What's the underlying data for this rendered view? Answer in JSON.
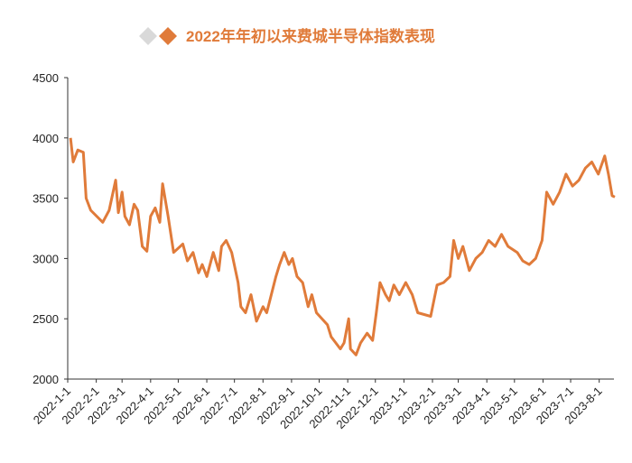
{
  "chart_data": {
    "type": "line",
    "title": "2022年年初以来费城半导体指数表现",
    "color": "#e07b3a",
    "x": [
      "2022-1-4",
      "2022-1-7",
      "2022-1-12",
      "2022-1-18",
      "2022-1-21",
      "2022-1-26",
      "2022-2-8",
      "2022-2-15",
      "2022-2-22",
      "2022-2-25",
      "2022-3-1",
      "2022-3-4",
      "2022-3-9",
      "2022-3-14",
      "2022-3-18",
      "2022-3-23",
      "2022-3-28",
      "2022-4-1",
      "2022-4-6",
      "2022-4-11",
      "2022-4-14",
      "2022-4-20",
      "2022-4-26",
      "2022-5-6",
      "2022-5-11",
      "2022-5-17",
      "2022-5-23",
      "2022-5-27",
      "2022-6-1",
      "2022-6-8",
      "2022-6-14",
      "2022-6-17",
      "2022-6-22",
      "2022-6-28",
      "2022-7-5",
      "2022-7-8",
      "2022-7-13",
      "2022-7-19",
      "2022-7-25",
      "2022-8-1",
      "2022-8-5",
      "2022-8-10",
      "2022-8-15",
      "2022-8-19",
      "2022-8-24",
      "2022-8-29",
      "2022-9-2",
      "2022-9-7",
      "2022-9-13",
      "2022-9-19",
      "2022-9-23",
      "2022-9-28",
      "2022-10-10",
      "2022-10-14",
      "2022-10-19",
      "2022-10-24",
      "2022-10-28",
      "2022-11-2",
      "2022-11-4",
      "2022-11-10",
      "2022-11-15",
      "2022-11-22",
      "2022-11-28",
      "2022-12-2",
      "2022-12-6",
      "2022-12-12",
      "2022-12-16",
      "2022-12-21",
      "2022-12-27",
      "2023-1-3",
      "2023-1-10",
      "2023-1-16",
      "2023-1-30",
      "2023-2-6",
      "2023-2-13",
      "2023-2-20",
      "2023-2-24",
      "2023-3-1",
      "2023-3-6",
      "2023-3-13",
      "2023-3-20",
      "2023-3-27",
      "2023-4-3",
      "2023-4-10",
      "2023-4-17",
      "2023-4-24",
      "2023-5-4",
      "2023-5-10",
      "2023-5-17",
      "2023-5-24",
      "2023-5-31",
      "2023-6-5",
      "2023-6-12",
      "2023-6-19",
      "2023-6-26",
      "2023-7-3",
      "2023-7-10",
      "2023-7-17",
      "2023-7-24",
      "2023-7-31",
      "2023-8-7",
      "2023-8-11",
      "2023-8-15",
      "2023-8-18"
    ],
    "values": [
      4000,
      3800,
      3900,
      3880,
      3500,
      3400,
      3300,
      3400,
      3650,
      3380,
      3550,
      3350,
      3280,
      3450,
      3400,
      3100,
      3060,
      3350,
      3420,
      3300,
      3620,
      3350,
      3050,
      3120,
      2980,
      3050,
      2880,
      2950,
      2850,
      3050,
      2900,
      3100,
      3150,
      3050,
      2800,
      2600,
      2550,
      2700,
      2480,
      2600,
      2550,
      2700,
      2850,
      2950,
      3050,
      2950,
      3000,
      2850,
      2800,
      2600,
      2700,
      2550,
      2450,
      2350,
      2300,
      2250,
      2300,
      2500,
      2250,
      2200,
      2300,
      2380,
      2320,
      2550,
      2800,
      2700,
      2650,
      2780,
      2700,
      2800,
      2700,
      2550,
      2520,
      2780,
      2800,
      2850,
      3150,
      3000,
      3100,
      2900,
      3000,
      3050,
      3150,
      3100,
      3200,
      3100,
      3050,
      2980,
      2950,
      3000,
      3150,
      3550,
      3450,
      3550,
      3700,
      3600,
      3650,
      3750,
      3800,
      3700,
      3850,
      3700,
      3520,
      3510
    ],
    "xlim": [
      "2022-1-1",
      "2023-8-17"
    ],
    "xticks": [
      "2022-1-1",
      "2022-2-1",
      "2022-3-1",
      "2022-4-1",
      "2022-5-1",
      "2022-6-1",
      "2022-7-1",
      "2022-8-1",
      "2022-9-1",
      "2022-10-1",
      "2022-11-1",
      "2022-12-1",
      "2023-1-1",
      "2023-2-1",
      "2023-3-1",
      "2023-4-1",
      "2023-5-1",
      "2023-6-1",
      "2023-7-1",
      "2023-8-1"
    ],
    "ylim": [
      2000,
      4500
    ],
    "yticks": [
      2000,
      2500,
      3000,
      3500,
      4000,
      4500
    ]
  }
}
